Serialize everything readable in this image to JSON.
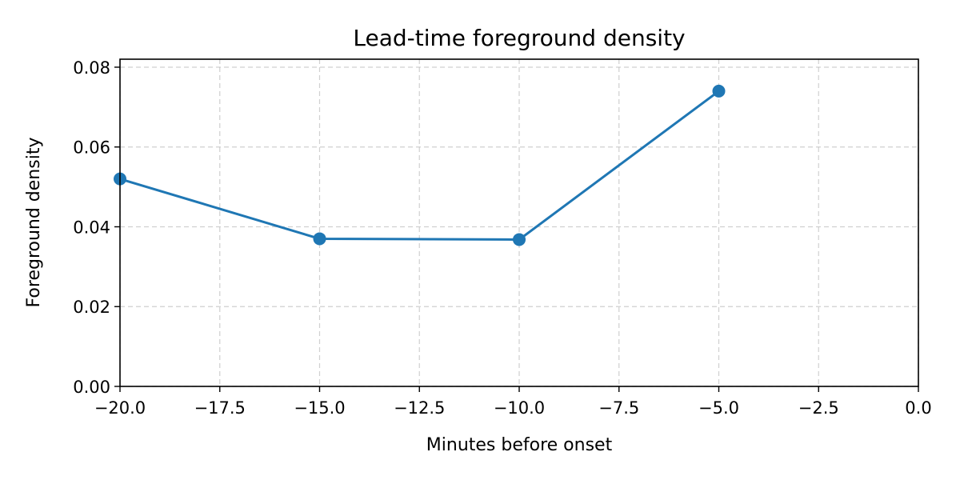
{
  "chart_data": {
    "type": "line",
    "title": "Lead-time foreground density",
    "xlabel": "Minutes before onset",
    "ylabel": "Foreground density",
    "xlim": [
      -20,
      0
    ],
    "ylim": [
      0,
      0.082
    ],
    "x_ticks": [
      -20,
      -17.5,
      -15,
      -12.5,
      -10,
      -7.5,
      -5,
      -2.5,
      0
    ],
    "x_tick_labels": [
      "−20.0",
      "−17.5",
      "−15.0",
      "−12.5",
      "−10.0",
      "−7.5",
      "−5.0",
      "−2.5",
      "0.0"
    ],
    "y_ticks": [
      0,
      0.02,
      0.04,
      0.06,
      0.08
    ],
    "y_tick_labels": [
      "0.00",
      "0.02",
      "0.04",
      "0.06",
      "0.08"
    ],
    "grid": true,
    "series": [
      {
        "x": [
          -20,
          -15,
          -10,
          -5
        ],
        "y": [
          0.052,
          0.037,
          0.0368,
          0.074
        ],
        "color": "#1f77b4",
        "marker": "circle"
      }
    ]
  }
}
